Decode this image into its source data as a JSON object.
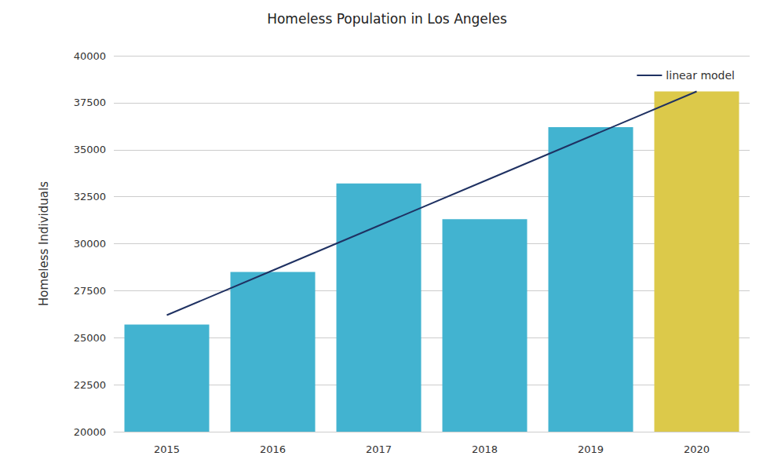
{
  "chart_data": {
    "type": "bar",
    "title": "Homeless Population in Los Angeles",
    "ylabel": "Homeless Individuals",
    "categories": [
      "2015",
      "2016",
      "2017",
      "2018",
      "2019",
      "2020"
    ],
    "values": [
      25700,
      28500,
      33200,
      31300,
      36200,
      38100
    ],
    "colors": [
      "#42b3d0",
      "#42b3d0",
      "#42b3d0",
      "#42b3d0",
      "#42b3d0",
      "#dcc94a"
    ],
    "series": [
      {
        "name": "linear model",
        "type": "line",
        "color": "#1f3162",
        "line_style": "solid",
        "values": [
          26200,
          28580,
          30960,
          33340,
          35720,
          38100
        ]
      }
    ],
    "ylim": [
      20000,
      40000
    ],
    "yticks": [
      20000,
      22500,
      25000,
      27500,
      30000,
      32500,
      35000,
      37500,
      40000
    ],
    "grid": true,
    "legend": "upper right"
  }
}
